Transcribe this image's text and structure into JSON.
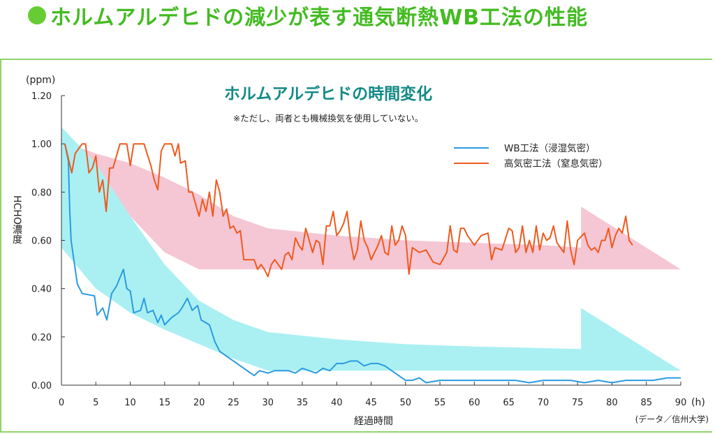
{
  "heading": {
    "text": "ホルムアルデヒドの減少が表す通気断熱WB工法の性能"
  },
  "colors": {
    "heading": "#44bb22",
    "wb_series": "#2a9be0",
    "high_series": "#ee5a1e",
    "wb_band": "#aaf0f2",
    "high_band": "#f5c6d4",
    "title": "#138a86",
    "frame": "#8fd46a"
  },
  "chart_data": {
    "type": "line",
    "title": "ホルムアルデヒドの時間変化",
    "subtitle": "※ただし、両者とも機械換気を使用していない。",
    "ylabel": "HCHO濃度",
    "yunit": "(ppm)",
    "xlabel": "経過時間",
    "xunit": "(h)",
    "source": "(データ／信州大学)",
    "xlim": [
      0,
      90
    ],
    "ylim": [
      0,
      1.2
    ],
    "xticks": [
      "0",
      "5",
      "10",
      "15",
      "20",
      "25",
      "30",
      "35",
      "40",
      "45",
      "50",
      "55",
      "60",
      "65",
      "70",
      "75",
      "80",
      "85",
      "90"
    ],
    "yticks": [
      "0.00",
      "0.20",
      "0.40",
      "0.60",
      "0.80",
      "1.00",
      "1.20"
    ],
    "legend_position": "top-right",
    "grid": false,
    "series": [
      {
        "name": "WB工法（浸湿気密）",
        "color": "#2a9be0",
        "points": [
          [
            0.5,
            1.0
          ],
          [
            1,
            0.93
          ],
          [
            1.2,
            0.73
          ],
          [
            1.4,
            0.6
          ],
          [
            2.3,
            0.42
          ],
          [
            3,
            0.38
          ],
          [
            4.8,
            0.37
          ],
          [
            5.2,
            0.29
          ],
          [
            6,
            0.32
          ],
          [
            6.6,
            0.27
          ],
          [
            7.3,
            0.38
          ],
          [
            8,
            0.41
          ],
          [
            9,
            0.48
          ],
          [
            9.5,
            0.4
          ],
          [
            10,
            0.39
          ],
          [
            10.5,
            0.3
          ],
          [
            11.5,
            0.31
          ],
          [
            12,
            0.36
          ],
          [
            12.5,
            0.3
          ],
          [
            13.3,
            0.31
          ],
          [
            14,
            0.26
          ],
          [
            14.5,
            0.29
          ],
          [
            15,
            0.25
          ],
          [
            16,
            0.28
          ],
          [
            17,
            0.3
          ],
          [
            17.5,
            0.32
          ],
          [
            18.3,
            0.36
          ],
          [
            19,
            0.31
          ],
          [
            19.8,
            0.33
          ],
          [
            20.3,
            0.27
          ],
          [
            21.5,
            0.25
          ],
          [
            22.3,
            0.18
          ],
          [
            23,
            0.14
          ],
          [
            24,
            0.12
          ],
          [
            25,
            0.1
          ],
          [
            26,
            0.08
          ],
          [
            27,
            0.06
          ],
          [
            28,
            0.04
          ],
          [
            28.8,
            0.06
          ],
          [
            30,
            0.05
          ],
          [
            31,
            0.06
          ],
          [
            33,
            0.06
          ],
          [
            34,
            0.05
          ],
          [
            35,
            0.07
          ],
          [
            36,
            0.06
          ],
          [
            37,
            0.05
          ],
          [
            38,
            0.07
          ],
          [
            39,
            0.06
          ],
          [
            40,
            0.09
          ],
          [
            41,
            0.09
          ],
          [
            42,
            0.1
          ],
          [
            43,
            0.1
          ],
          [
            44,
            0.08
          ],
          [
            45,
            0.09
          ],
          [
            46,
            0.09
          ],
          [
            47,
            0.08
          ],
          [
            48,
            0.06
          ],
          [
            49,
            0.04
          ],
          [
            50,
            0.02
          ],
          [
            51,
            0.02
          ],
          [
            52,
            0.03
          ],
          [
            53,
            0.01
          ],
          [
            55,
            0.02
          ],
          [
            57,
            0.02
          ],
          [
            60,
            0.02
          ],
          [
            63,
            0.02
          ],
          [
            66,
            0.02
          ],
          [
            68,
            0.01
          ],
          [
            70,
            0.02
          ],
          [
            72,
            0.02
          ],
          [
            74,
            0.02
          ],
          [
            76,
            0.01
          ],
          [
            78,
            0.02
          ],
          [
            80,
            0.01
          ],
          [
            82,
            0.02
          ],
          [
            84,
            0.02
          ],
          [
            86,
            0.02
          ],
          [
            88,
            0.03
          ],
          [
            90,
            0.03
          ]
        ]
      },
      {
        "name": "高気密工法（窒息気密）",
        "color": "#ee5a1e",
        "points": [
          [
            0.5,
            1.0
          ],
          [
            1.5,
            0.88
          ],
          [
            2,
            0.96
          ],
          [
            3,
            1.0
          ],
          [
            3.5,
            1.0
          ],
          [
            4,
            0.88
          ],
          [
            4.5,
            0.9
          ],
          [
            5,
            0.95
          ],
          [
            5.5,
            0.8
          ],
          [
            6,
            0.85
          ],
          [
            6.5,
            0.72
          ],
          [
            7,
            0.9
          ],
          [
            7.5,
            0.9
          ],
          [
            8,
            0.95
          ],
          [
            8.5,
            1.0
          ],
          [
            9.5,
            1.0
          ],
          [
            10,
            0.91
          ],
          [
            10.5,
            1.0
          ],
          [
            12,
            1.0
          ],
          [
            13,
            0.91
          ],
          [
            13.5,
            0.85
          ],
          [
            14,
            0.81
          ],
          [
            14.5,
            0.97
          ],
          [
            15,
            1.0
          ],
          [
            16,
            1.0
          ],
          [
            16.5,
            0.95
          ],
          [
            17,
            1.0
          ],
          [
            17.3,
            0.92
          ],
          [
            18,
            0.93
          ],
          [
            18.5,
            0.8
          ],
          [
            19,
            0.8
          ],
          [
            19.5,
            0.75
          ],
          [
            20,
            0.7
          ],
          [
            20.5,
            0.77
          ],
          [
            21,
            0.72
          ],
          [
            21.5,
            0.8
          ],
          [
            22,
            0.7
          ],
          [
            22.5,
            0.85
          ],
          [
            23,
            0.8
          ],
          [
            23.5,
            0.7
          ],
          [
            24,
            0.73
          ],
          [
            24.5,
            0.65
          ],
          [
            25,
            0.66
          ],
          [
            25.5,
            0.63
          ],
          [
            26,
            0.64
          ],
          [
            26.5,
            0.52
          ],
          [
            27,
            0.52
          ],
          [
            28,
            0.52
          ],
          [
            28.5,
            0.48
          ],
          [
            29,
            0.5
          ],
          [
            29.5,
            0.48
          ],
          [
            30,
            0.45
          ],
          [
            30.5,
            0.5
          ],
          [
            31,
            0.52
          ],
          [
            32,
            0.48
          ],
          [
            32.5,
            0.54
          ],
          [
            33,
            0.55
          ],
          [
            33.5,
            0.52
          ],
          [
            34,
            0.61
          ],
          [
            34.5,
            0.58
          ],
          [
            35,
            0.56
          ],
          [
            35.5,
            0.65
          ],
          [
            36,
            0.6
          ],
          [
            36.5,
            0.55
          ],
          [
            37,
            0.6
          ],
          [
            37.5,
            0.59
          ],
          [
            38,
            0.5
          ],
          [
            38.5,
            0.66
          ],
          [
            39,
            0.66
          ],
          [
            39.5,
            0.72
          ],
          [
            40,
            0.62
          ],
          [
            40.5,
            0.64
          ],
          [
            41,
            0.67
          ],
          [
            41.5,
            0.72
          ],
          [
            42,
            0.6
          ],
          [
            42.5,
            0.52
          ],
          [
            43,
            0.56
          ],
          [
            43.5,
            0.68
          ],
          [
            44,
            0.6
          ],
          [
            44.5,
            0.57
          ],
          [
            45,
            0.52
          ],
          [
            46,
            0.58
          ],
          [
            46.5,
            0.62
          ],
          [
            47,
            0.55
          ],
          [
            47.5,
            0.54
          ],
          [
            48,
            0.66
          ],
          [
            48.5,
            0.58
          ],
          [
            49,
            0.6
          ],
          [
            49.5,
            0.66
          ],
          [
            50,
            0.62
          ],
          [
            50.5,
            0.46
          ],
          [
            51,
            0.57
          ],
          [
            52,
            0.55
          ],
          [
            53,
            0.56
          ],
          [
            54,
            0.51
          ],
          [
            55,
            0.5
          ],
          [
            56,
            0.55
          ],
          [
            56.5,
            0.66
          ],
          [
            57,
            0.56
          ],
          [
            57.5,
            0.55
          ],
          [
            58,
            0.65
          ],
          [
            58.5,
            0.65
          ],
          [
            59,
            0.62
          ],
          [
            60,
            0.58
          ],
          [
            61,
            0.62
          ],
          [
            62,
            0.63
          ],
          [
            62.5,
            0.52
          ],
          [
            63,
            0.57
          ],
          [
            64,
            0.56
          ],
          [
            65,
            0.65
          ],
          [
            65.5,
            0.64
          ],
          [
            66,
            0.55
          ],
          [
            66.5,
            0.57
          ],
          [
            67,
            0.66
          ],
          [
            67.5,
            0.55
          ],
          [
            68,
            0.6
          ],
          [
            68.5,
            0.55
          ],
          [
            69,
            0.66
          ],
          [
            69.5,
            0.56
          ],
          [
            70,
            0.63
          ],
          [
            70.5,
            0.6
          ],
          [
            71,
            0.61
          ],
          [
            71.5,
            0.66
          ],
          [
            72,
            0.59
          ],
          [
            73,
            0.55
          ],
          [
            73.5,
            0.68
          ],
          [
            74,
            0.56
          ],
          [
            74.5,
            0.5
          ],
          [
            75,
            0.6
          ],
          [
            76,
            0.63
          ],
          [
            76.5,
            0.58
          ],
          [
            77,
            0.56
          ],
          [
            77.5,
            0.57
          ],
          [
            78,
            0.55
          ],
          [
            78.5,
            0.6
          ],
          [
            79,
            0.6
          ],
          [
            79.5,
            0.65
          ],
          [
            80,
            0.57
          ],
          [
            80.5,
            0.62
          ],
          [
            81,
            0.65
          ],
          [
            81.5,
            0.63
          ],
          [
            82,
            0.7
          ],
          [
            82.5,
            0.6
          ],
          [
            83,
            0.58
          ]
        ]
      }
    ],
    "bands": [
      {
        "series": "高気密工法（窒息気密）",
        "upper": [
          [
            0,
            1.01
          ],
          [
            5,
            0.96
          ],
          [
            10,
            0.92
          ],
          [
            15,
            0.86
          ],
          [
            20,
            0.79
          ],
          [
            25,
            0.7
          ],
          [
            30,
            0.65
          ],
          [
            40,
            0.62
          ],
          [
            50,
            0.6
          ],
          [
            60,
            0.59
          ],
          [
            70,
            0.58
          ],
          [
            75.5,
            0.57
          ],
          [
            75.5,
            0.74
          ],
          [
            90,
            0.48
          ]
        ],
        "lower": [
          [
            0,
            1.0
          ],
          [
            3,
            0.95
          ],
          [
            6,
            0.85
          ],
          [
            10,
            0.7
          ],
          [
            15,
            0.55
          ],
          [
            20,
            0.48
          ],
          [
            90,
            0.48
          ]
        ]
      },
      {
        "series": "WB工法（浸湿気密）",
        "upper": [
          [
            0,
            1.07
          ],
          [
            5,
            0.92
          ],
          [
            10,
            0.7
          ],
          [
            15,
            0.5
          ],
          [
            20,
            0.35
          ],
          [
            25,
            0.27
          ],
          [
            30,
            0.22
          ],
          [
            40,
            0.19
          ],
          [
            50,
            0.17
          ],
          [
            60,
            0.16
          ],
          [
            75.5,
            0.15
          ],
          [
            75.5,
            0.32
          ],
          [
            90,
            0.06
          ]
        ],
        "lower": [
          [
            0,
            0.57
          ],
          [
            5,
            0.4
          ],
          [
            10,
            0.3
          ],
          [
            15,
            0.23
          ],
          [
            20,
            0.17
          ],
          [
            25,
            0.11
          ],
          [
            30,
            0.06
          ],
          [
            90,
            0.06
          ]
        ]
      }
    ]
  }
}
